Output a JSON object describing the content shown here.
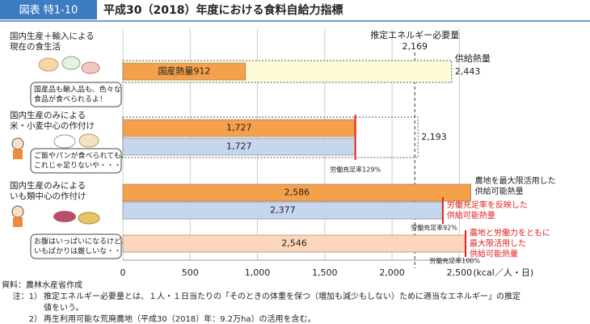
{
  "chart_data": {
    "type": "bar",
    "orientation": "horizontal",
    "figure_label": "図表 特1-10",
    "title": "平成30（2018）年度における食料自給力指標",
    "xlim": [
      0,
      2600
    ],
    "xticks": [
      0,
      500,
      {
        "value": 1000,
        "label": "1,000"
      },
      {
        "value": 1500,
        "label": "1,500"
      },
      {
        "value": 2000,
        "label": "2,000"
      },
      {
        "value": 2500,
        "label": "2,500"
      }
    ],
    "x_unit": "(kcal／人・日)",
    "grid": true,
    "reference": {
      "label": "推定エネルギー必要量",
      "value": 2169,
      "value_label": "2,169"
    },
    "groups": [
      {
        "lines": [
          "国内生産＋輸入による",
          "現在の食生活"
        ],
        "bubble": [
          "国産品も輸入品も、色々な",
          "食品が食べられるよ！"
        ],
        "envelope": {
          "name": "供給熱量",
          "value": 2443,
          "value_label": "2,443",
          "fill": "#fdfbd8"
        },
        "bars": [
          {
            "name": "国産熱量",
            "value": 912,
            "value_label": "912",
            "color": "#f5a04a"
          }
        ]
      },
      {
        "lines": [
          "国内生産のみによる",
          "米・小麦中心の作付け"
        ],
        "bubble": [
          "ご飯やパンが食べられても、",
          "これじゃ足りないや・・・"
        ],
        "envelope": {
          "value": 2193,
          "value_label": "2,193",
          "fill": "none"
        },
        "labor": "労働充足率129%",
        "bars": [
          {
            "value": 1727,
            "value_label": "1,727",
            "color": "#f5a04a"
          },
          {
            "value": 1727,
            "value_label": "1,727",
            "color": "#c6d6ee"
          }
        ]
      },
      {
        "lines": [
          "国内生産のみによる",
          "いも類中心の作付け"
        ],
        "bubble": [
          "お腹はいっぱいになるけど、",
          "いもばかりは厳しいな・・・"
        ],
        "bars": [
          {
            "value": 2586,
            "value_label": "2,586",
            "color": "#f5a04a",
            "name_lines": [
              "農地を最大限活用した",
              "供給可能熱量"
            ]
          },
          {
            "value": 2377,
            "value_label": "2,377",
            "color": "#c6d6ee",
            "name_lines": [
              "労働充足率を反映した",
              "供給可能熱量"
            ],
            "labor": "労働充足率92%"
          },
          {
            "value": 2546,
            "value_label": "2,546",
            "color": "#fbd6ba",
            "name_lines": [
              "農地と労働力をともに",
              "最大限活用した",
              "供給可能熱量"
            ],
            "labor": "労働充足率100%"
          }
        ]
      }
    ],
    "source": "資料：農林水産省作成",
    "notes": [
      {
        "mark": "注：1）",
        "lines": [
          "推定エネルギー必要量とは、１人・１日当たりの「そのときの体重を保つ（増加も減少もしない）ために適当なエネルギー」の推定",
          "値をいう。"
        ]
      },
      {
        "mark": "2）",
        "lines": [
          "再生利用可能な荒廃農地（平成30（2018）年：9.2万ha）の活用を含む。"
        ]
      }
    ]
  }
}
